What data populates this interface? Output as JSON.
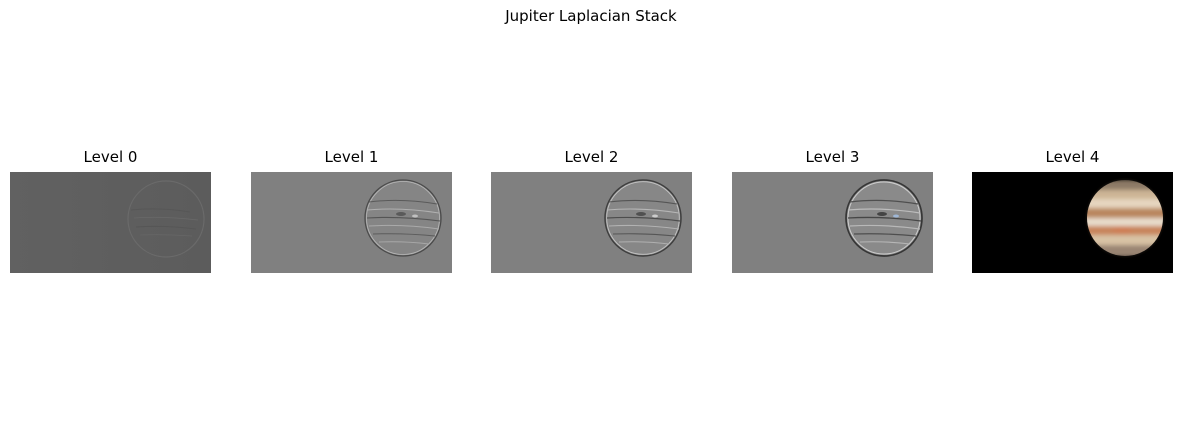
{
  "figure": {
    "title": "Jupiter Laplacian Stack"
  },
  "panels": [
    {
      "title": "Level 0",
      "image": "laplacian-level-0-detail"
    },
    {
      "title": "Level 1",
      "image": "laplacian-level-1-detail"
    },
    {
      "title": "Level 2",
      "image": "laplacian-level-2-detail"
    },
    {
      "title": "Level 3",
      "image": "laplacian-level-3-detail"
    },
    {
      "title": "Level 4",
      "image": "jupiter-low-pass-color"
    }
  ],
  "colors": {
    "level0_background": "#5f5f5f",
    "detail_background": "#808080",
    "residual_background": "#000000"
  }
}
